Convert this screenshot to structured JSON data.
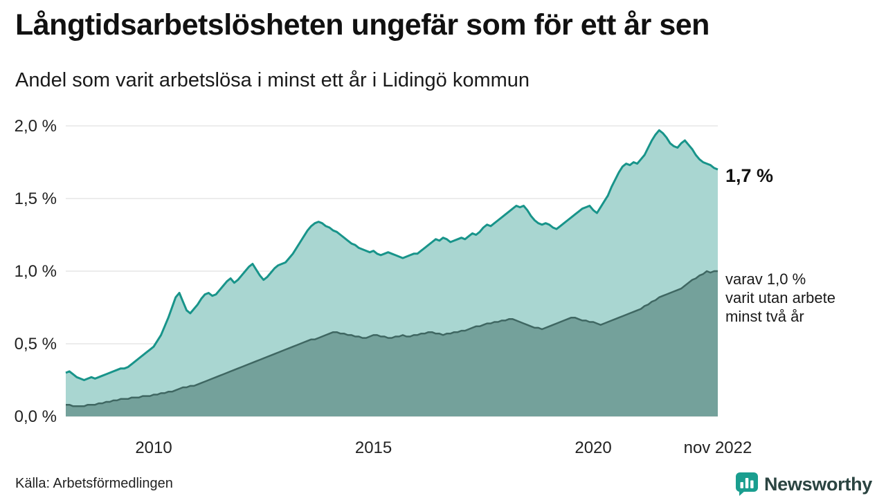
{
  "page": {
    "title": "Långtidsarbetslösheten ungefär som för ett år sen",
    "subtitle": "Andel som varit arbetslösa i minst ett år i Lidingö kommun",
    "source": "Källa: Arbetsförmedlingen",
    "brand_name": "Newsworthy"
  },
  "annotations": {
    "end_label_total": "1,7 %",
    "end_label_two_years": "varav 1,0 %\nvarit utan arbete\nminst två år"
  },
  "colors": {
    "line_total": "#18948a",
    "fill_total": "#a9d6d1",
    "line_two_years": "#3f6762",
    "fill_two_years": "#74a19b",
    "grid": "#d8d8d8",
    "axis_text": "#222222",
    "brand_teal": "#1a9e8f"
  },
  "chart_data": {
    "type": "area",
    "title": "Långtidsarbetslösheten ungefär som för ett år sen",
    "subtitle": "Andel som varit arbetslösa i minst ett år i Lidingö kommun",
    "x_start": 2008.0,
    "x_step_months": 1,
    "ylim": [
      0,
      2.0
    ],
    "grid": true,
    "legend": "none",
    "y_ticks": [
      {
        "v": 0.0,
        "label": "0,0 %"
      },
      {
        "v": 0.5,
        "label": "0,5 %"
      },
      {
        "v": 1.0,
        "label": "1,0 %"
      },
      {
        "v": 1.5,
        "label": "1,5 %"
      },
      {
        "v": 2.0,
        "label": "2,0 %"
      }
    ],
    "x_ticks": [
      {
        "t": 2010.0,
        "label": "2010"
      },
      {
        "t": 2015.0,
        "label": "2015"
      },
      {
        "t": 2020.0,
        "label": "2020"
      },
      {
        "t": 2022.833,
        "label": "nov 2022"
      }
    ],
    "series": [
      {
        "name": "Andel arbetslösa minst ett år",
        "end_value_label": "1,7 %",
        "values": [
          0.3,
          0.31,
          0.29,
          0.27,
          0.26,
          0.25,
          0.26,
          0.27,
          0.26,
          0.27,
          0.28,
          0.29,
          0.3,
          0.31,
          0.32,
          0.33,
          0.33,
          0.34,
          0.36,
          0.38,
          0.4,
          0.42,
          0.44,
          0.46,
          0.48,
          0.52,
          0.56,
          0.62,
          0.68,
          0.75,
          0.82,
          0.85,
          0.79,
          0.73,
          0.71,
          0.74,
          0.77,
          0.81,
          0.84,
          0.85,
          0.83,
          0.84,
          0.87,
          0.9,
          0.93,
          0.95,
          0.92,
          0.94,
          0.97,
          1.0,
          1.03,
          1.05,
          1.01,
          0.97,
          0.94,
          0.96,
          0.99,
          1.02,
          1.04,
          1.05,
          1.06,
          1.09,
          1.12,
          1.16,
          1.2,
          1.24,
          1.28,
          1.31,
          1.33,
          1.34,
          1.33,
          1.31,
          1.3,
          1.28,
          1.27,
          1.25,
          1.23,
          1.21,
          1.19,
          1.18,
          1.16,
          1.15,
          1.14,
          1.13,
          1.14,
          1.12,
          1.11,
          1.12,
          1.13,
          1.12,
          1.11,
          1.1,
          1.09,
          1.1,
          1.11,
          1.12,
          1.12,
          1.14,
          1.16,
          1.18,
          1.2,
          1.22,
          1.21,
          1.23,
          1.22,
          1.2,
          1.21,
          1.22,
          1.23,
          1.22,
          1.24,
          1.26,
          1.25,
          1.27,
          1.3,
          1.32,
          1.31,
          1.33,
          1.35,
          1.37,
          1.39,
          1.41,
          1.43,
          1.45,
          1.44,
          1.45,
          1.42,
          1.38,
          1.35,
          1.33,
          1.32,
          1.33,
          1.32,
          1.3,
          1.29,
          1.31,
          1.33,
          1.35,
          1.37,
          1.39,
          1.41,
          1.43,
          1.44,
          1.45,
          1.42,
          1.4,
          1.44,
          1.48,
          1.52,
          1.58,
          1.63,
          1.68,
          1.72,
          1.74,
          1.73,
          1.75,
          1.74,
          1.77,
          1.8,
          1.85,
          1.9,
          1.94,
          1.97,
          1.95,
          1.92,
          1.88,
          1.86,
          1.85,
          1.88,
          1.9,
          1.87,
          1.84,
          1.8,
          1.77,
          1.75,
          1.74,
          1.73,
          1.71,
          1.7
        ]
      },
      {
        "name": "varav arbetslösa minst två år",
        "end_value_label": "1,0 %",
        "values": [
          0.08,
          0.08,
          0.07,
          0.07,
          0.07,
          0.07,
          0.08,
          0.08,
          0.08,
          0.09,
          0.09,
          0.1,
          0.1,
          0.11,
          0.11,
          0.12,
          0.12,
          0.12,
          0.13,
          0.13,
          0.13,
          0.14,
          0.14,
          0.14,
          0.15,
          0.15,
          0.16,
          0.16,
          0.17,
          0.17,
          0.18,
          0.19,
          0.2,
          0.2,
          0.21,
          0.21,
          0.22,
          0.23,
          0.24,
          0.25,
          0.26,
          0.27,
          0.28,
          0.29,
          0.3,
          0.31,
          0.32,
          0.33,
          0.34,
          0.35,
          0.36,
          0.37,
          0.38,
          0.39,
          0.4,
          0.41,
          0.42,
          0.43,
          0.44,
          0.45,
          0.46,
          0.47,
          0.48,
          0.49,
          0.5,
          0.51,
          0.52,
          0.53,
          0.53,
          0.54,
          0.55,
          0.56,
          0.57,
          0.58,
          0.58,
          0.57,
          0.57,
          0.56,
          0.56,
          0.55,
          0.55,
          0.54,
          0.54,
          0.55,
          0.56,
          0.56,
          0.55,
          0.55,
          0.54,
          0.54,
          0.55,
          0.55,
          0.56,
          0.55,
          0.55,
          0.56,
          0.56,
          0.57,
          0.57,
          0.58,
          0.58,
          0.57,
          0.57,
          0.56,
          0.57,
          0.57,
          0.58,
          0.58,
          0.59,
          0.59,
          0.6,
          0.61,
          0.62,
          0.62,
          0.63,
          0.64,
          0.64,
          0.65,
          0.65,
          0.66,
          0.66,
          0.67,
          0.67,
          0.66,
          0.65,
          0.64,
          0.63,
          0.62,
          0.61,
          0.61,
          0.6,
          0.61,
          0.62,
          0.63,
          0.64,
          0.65,
          0.66,
          0.67,
          0.68,
          0.68,
          0.67,
          0.66,
          0.66,
          0.65,
          0.65,
          0.64,
          0.63,
          0.64,
          0.65,
          0.66,
          0.67,
          0.68,
          0.69,
          0.7,
          0.71,
          0.72,
          0.73,
          0.74,
          0.76,
          0.77,
          0.79,
          0.8,
          0.82,
          0.83,
          0.84,
          0.85,
          0.86,
          0.87,
          0.88,
          0.9,
          0.92,
          0.94,
          0.95,
          0.97,
          0.98,
          1.0,
          0.99,
          1.0,
          1.0
        ]
      }
    ]
  }
}
